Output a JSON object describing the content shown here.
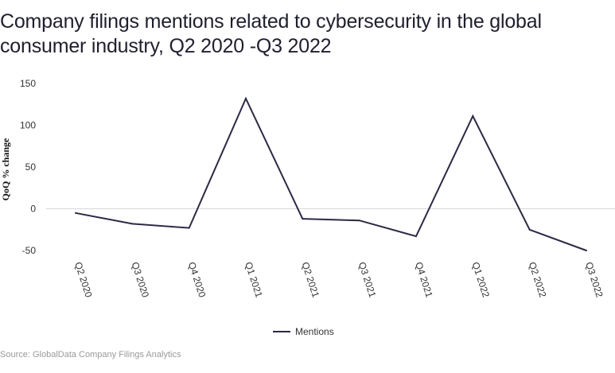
{
  "title": "Company filings mentions related to cybersecurity in the global consumer industry, Q2 2020 -Q3 2022",
  "source": "Source: GlobalData Company Filings Analytics",
  "colors": {
    "line": "#2b2a45",
    "zero_line": "#d9d9d9"
  },
  "chart_data": {
    "type": "line",
    "categories": [
      "Q2 2020",
      "Q3 2020",
      "Q4 2020",
      "Q1 2021",
      "Q2 2021",
      "Q3 2021",
      "Q4 2021",
      "Q1 2022",
      "Q2 2022",
      "Q3 2022"
    ],
    "series": [
      {
        "name": "Mentions",
        "values": [
          -5,
          -18,
          -23,
          132,
          -12,
          -14,
          -33,
          111,
          -25,
          -50
        ]
      }
    ],
    "xlabel": "",
    "ylabel": "QoQ % change",
    "yticks": [
      150,
      100,
      50,
      0,
      -50
    ],
    "ylim": [
      -50,
      150
    ],
    "grid": "zero line only",
    "legend": "bottom-center"
  }
}
